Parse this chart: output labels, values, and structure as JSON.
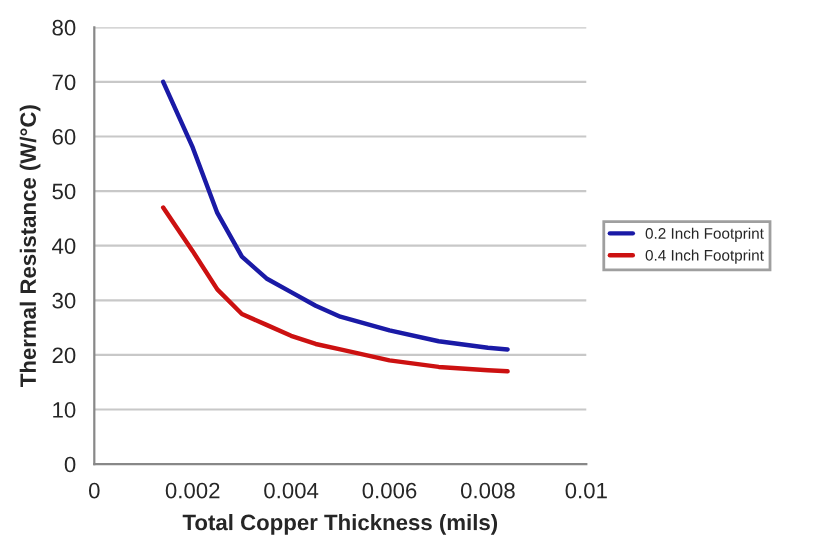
{
  "chart_data": {
    "type": "line",
    "xlabel": "Total Copper Thickness (mils)",
    "ylabel": "Thermal Resistance (W/°C)",
    "xlim": [
      0,
      0.01
    ],
    "xticks": [
      0,
      0.002,
      0.004,
      0.006,
      0.008,
      0.01
    ],
    "ylim": [
      0,
      80
    ],
    "yticks": [
      0,
      10,
      20,
      30,
      40,
      50,
      60,
      70,
      80
    ],
    "grid": "y",
    "legend": "right",
    "line_style": "solid",
    "marker": "none",
    "series": [
      {
        "name": "0.2 Inch Footprint",
        "color": "#1a1aa6",
        "x": [
          0.0014,
          0.002,
          0.0025,
          0.003,
          0.0035,
          0.004,
          0.0045,
          0.005,
          0.006,
          0.007,
          0.008,
          0.0084
        ],
        "values": [
          70,
          58,
          46,
          38,
          34,
          31.5,
          29,
          27,
          24.5,
          22.5,
          21.3,
          21
        ]
      },
      {
        "name": "0.4 Inch Footprint",
        "color": "#cc1111",
        "x": [
          0.0014,
          0.002,
          0.0025,
          0.003,
          0.0035,
          0.004,
          0.0045,
          0.005,
          0.006,
          0.007,
          0.008,
          0.0084
        ],
        "values": [
          47,
          39,
          32,
          27.5,
          25.5,
          23.5,
          22,
          21,
          19,
          17.8,
          17.2,
          17
        ]
      }
    ]
  }
}
